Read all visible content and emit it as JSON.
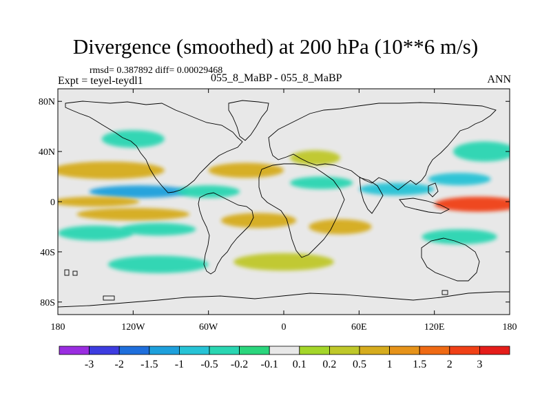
{
  "chart_data": {
    "type": "heatmap",
    "title": "Divergence (smoothed) at 200 hPa (10**6 m/s)",
    "stats": "rmsd= 0.387892 diff= 0.00029468",
    "experiment": "Expt = teyel-teydl1",
    "case": "055_8_MaBP - 055_8_MaBP",
    "season": "ANN",
    "xlim": [
      -180,
      180
    ],
    "ylim": [
      -90,
      90
    ],
    "x_ticks": [
      {
        "value": -180,
        "label": "180"
      },
      {
        "value": -120,
        "label": "120W"
      },
      {
        "value": -60,
        "label": "60W"
      },
      {
        "value": 0,
        "label": "0"
      },
      {
        "value": 60,
        "label": "60E"
      },
      {
        "value": 120,
        "label": "120E"
      },
      {
        "value": 180,
        "label": "180"
      }
    ],
    "y_ticks": [
      {
        "value": 80,
        "label": "80N"
      },
      {
        "value": 40,
        "label": "40N"
      },
      {
        "value": 0,
        "label": "0"
      },
      {
        "value": -40,
        "label": "40S"
      },
      {
        "value": -80,
        "label": "80S"
      }
    ],
    "colorbar": {
      "colors": [
        "#9a2de0",
        "#3d3ce0",
        "#1f6fdc",
        "#1ea0dc",
        "#27c3d6",
        "#2ad6b2",
        "#2bd67d",
        "#e8e8e8",
        "#a4d62a",
        "#bfc82a",
        "#d6ac1e",
        "#e6931a",
        "#ef6a14",
        "#f04016",
        "#e51d1a"
      ],
      "labels": [
        "-3",
        "-2",
        "-1.5",
        "-1",
        "-0.5",
        "-0.2",
        "-0.1",
        "0.1",
        "0.2",
        "0.5",
        "1",
        "1.5",
        "2",
        "3"
      ]
    },
    "field_features": [
      {
        "lon": -140,
        "lat": 25,
        "rx": 45,
        "ry": 7,
        "value": 0.7
      },
      {
        "lon": -115,
        "lat": 8,
        "rx": 40,
        "ry": 5,
        "value": -1.2
      },
      {
        "lon": -150,
        "lat": 0,
        "rx": 35,
        "ry": 4,
        "value": 0.5
      },
      {
        "lon": -120,
        "lat": -10,
        "rx": 45,
        "ry": 5,
        "value": 0.6
      },
      {
        "lon": -100,
        "lat": -22,
        "rx": 30,
        "ry": 5,
        "value": -0.4
      },
      {
        "lon": -150,
        "lat": -25,
        "rx": 30,
        "ry": 6,
        "value": -0.4
      },
      {
        "lon": -120,
        "lat": 50,
        "rx": 25,
        "ry": 7,
        "value": -0.3
      },
      {
        "lon": -60,
        "lat": 8,
        "rx": 25,
        "ry": 5,
        "value": -0.5
      },
      {
        "lon": -30,
        "lat": 25,
        "rx": 30,
        "ry": 6,
        "value": 0.5
      },
      {
        "lon": -20,
        "lat": -15,
        "rx": 30,
        "ry": 6,
        "value": 0.5
      },
      {
        "lon": 25,
        "lat": 35,
        "rx": 20,
        "ry": 6,
        "value": 0.3
      },
      {
        "lon": 30,
        "lat": 15,
        "rx": 25,
        "ry": 5,
        "value": -0.5
      },
      {
        "lon": 45,
        "lat": -20,
        "rx": 25,
        "ry": 6,
        "value": 0.5
      },
      {
        "lon": 90,
        "lat": 10,
        "rx": 30,
        "ry": 5,
        "value": -0.6
      },
      {
        "lon": 155,
        "lat": -2,
        "rx": 35,
        "ry": 6,
        "value": 2.0
      },
      {
        "lon": 140,
        "lat": 18,
        "rx": 25,
        "ry": 5,
        "value": -0.8
      },
      {
        "lon": 140,
        "lat": -28,
        "rx": 30,
        "ry": 6,
        "value": -0.3
      },
      {
        "lon": 160,
        "lat": 40,
        "rx": 25,
        "ry": 8,
        "value": -0.3
      },
      {
        "lon": -100,
        "lat": -50,
        "rx": 40,
        "ry": 7,
        "value": -0.3
      },
      {
        "lon": 0,
        "lat": -48,
        "rx": 40,
        "ry": 7,
        "value": 0.3
      }
    ]
  }
}
